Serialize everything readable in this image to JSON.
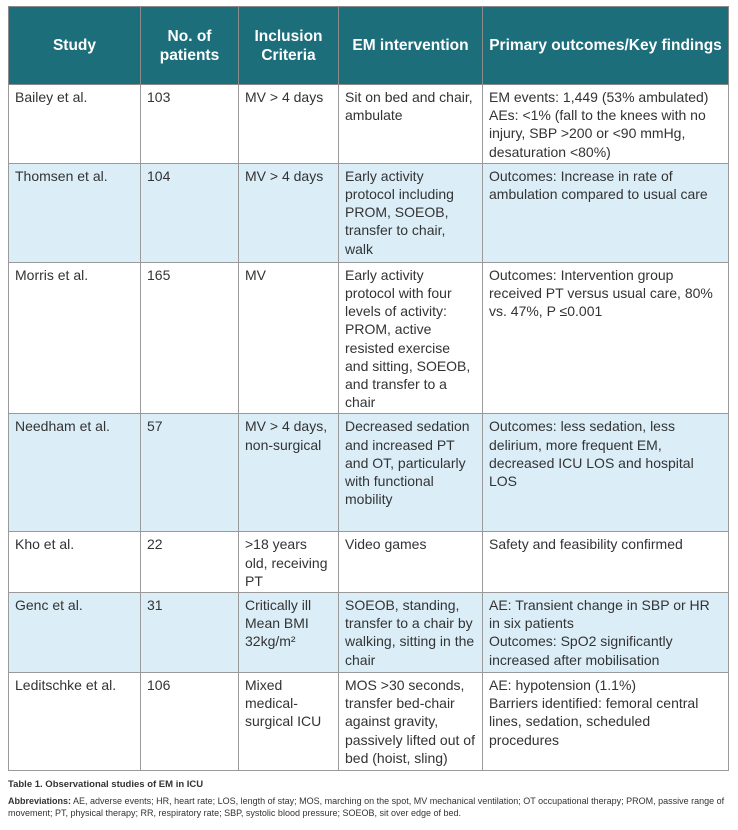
{
  "table": {
    "header": [
      "Study",
      "No. of patients",
      "Inclusion Criteria",
      "EM intervention",
      "Primary outcomes/Key findings"
    ],
    "rows": [
      [
        [
          "Bailey et al."
        ],
        [
          "103"
        ],
        [
          "MV > 4 days"
        ],
        [
          "Sit on bed and chair, ambulate"
        ],
        [
          "EM events: 1,449 (53% ambulated)",
          "AEs: <1% (fall to the knees with no injury, SBP >200 or <90 mmHg, desaturation <80%)"
        ]
      ],
      [
        [
          "Thomsen et al."
        ],
        [
          "104"
        ],
        [
          "MV > 4 days"
        ],
        [
          "Early activity protocol including PROM, SOEOB, transfer to chair, walk"
        ],
        [
          "Outcomes: Increase in rate of ambulation compared to usual care"
        ]
      ],
      [
        [
          "Morris et al."
        ],
        [
          "165"
        ],
        [
          "MV"
        ],
        [
          "Early activity protocol with four levels of activity: PROM, active resisted exercise and sitting, SOEOB, and transfer to a chair"
        ],
        [
          "Outcomes: Intervention group received PT versus usual care, 80% vs. 47%, P ≤0.001"
        ]
      ],
      [
        [
          "Needham et al."
        ],
        [
          "57"
        ],
        [
          "MV > 4 days, non-surgical"
        ],
        [
          "Decreased sedation and increased PT and OT, particularly with functional mobility"
        ],
        [
          "Outcomes: less sedation, less delirium, more frequent EM, decreased ICU LOS and hospital LOS"
        ]
      ],
      [
        [
          "Kho et al."
        ],
        [
          "22"
        ],
        [
          ">18 years old, receiving PT"
        ],
        [
          "Video games"
        ],
        [
          "Safety and feasibility confirmed"
        ]
      ],
      [
        [
          "Genc et al."
        ],
        [
          "31"
        ],
        [
          "Critically ill",
          "Mean BMI 32kg/m²"
        ],
        [
          "SOEOB, standing, transfer to a chair by walking, sitting in the chair"
        ],
        [
          "AE: Transient change in SBP or HR in six patients",
          "Outcomes: SpO2 significantly increased after mobilisation"
        ]
      ],
      [
        [
          "Leditschke et al."
        ],
        [
          "106"
        ],
        [
          "Mixed medical-surgical ICU"
        ],
        [
          "MOS >30 seconds, transfer bed-chair against gravity, passively lifted out of bed (hoist, sling)"
        ],
        [
          "AE: hypotension (1.1%)",
          "Barriers identified: femoral central lines, sedation, scheduled procedures"
        ]
      ]
    ]
  },
  "caption": "Table 1. Observational studies of EM in ICU",
  "abbreviations": {
    "label": "Abbreviations:",
    "text": "AE, adverse events; HR, heart rate; LOS, length of stay; MOS, marching on the spot, MV mechanical ventilation; OT occupational therapy; PROM, passive range of movement; PT, physical therapy; RR, respiratory rate; SBP, systolic blood pressure; SOEOB, sit over edge of bed."
  }
}
